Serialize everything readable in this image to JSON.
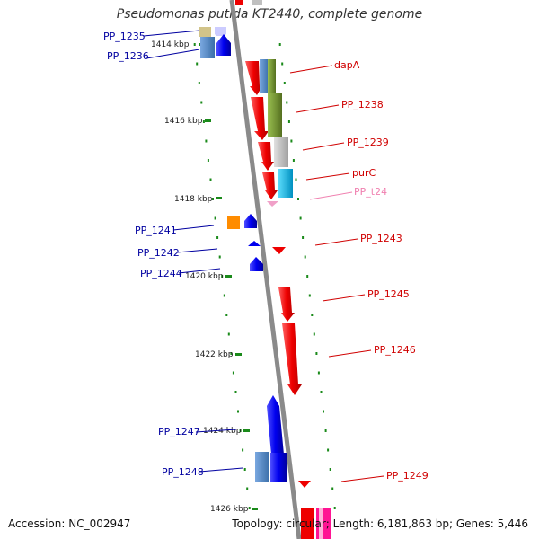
{
  "header": {
    "title": "Pseudomonas putida KT2440, complete genome"
  },
  "footer": {
    "accession": "Accession: NC_002947",
    "summary": "Topology: circular; Length: 6,181,863 bp; Genes: 5,446"
  },
  "ruler": {
    "tick_labels": [
      "1414 kbp",
      "1416 kbp",
      "1418 kbp",
      "1420 kbp",
      "1422 kbp",
      "1424 kbp",
      "1426 kbp"
    ]
  },
  "labels": {
    "left": [
      "PP_1235",
      "PP_1236",
      "PP_1241",
      "PP_1242",
      "PP_1244",
      "PP_1247",
      "PP_1248"
    ],
    "right": [
      "dapA",
      "PP_1238",
      "PP_1239",
      "purC",
      "PP_t24",
      "PP_1243",
      "PP_1245",
      "PP_1246",
      "PP_1249"
    ]
  },
  "colors": {
    "backbone": "#8a8a8a",
    "ruler_tick": "#1a8a1a",
    "gene_red": "#ee0000",
    "gene_blue": "#0000ee",
    "gene_steelblue": "#4a82c0",
    "gene_olive": "#6b8e23",
    "gene_grey": "#c0c0c0",
    "gene_cyan": "#00b8e8",
    "gene_orange": "#ff8c00",
    "gene_tan": "#d2c48a",
    "gene_pink": "#f0a0c8",
    "gene_magenta": "#ff1493"
  }
}
